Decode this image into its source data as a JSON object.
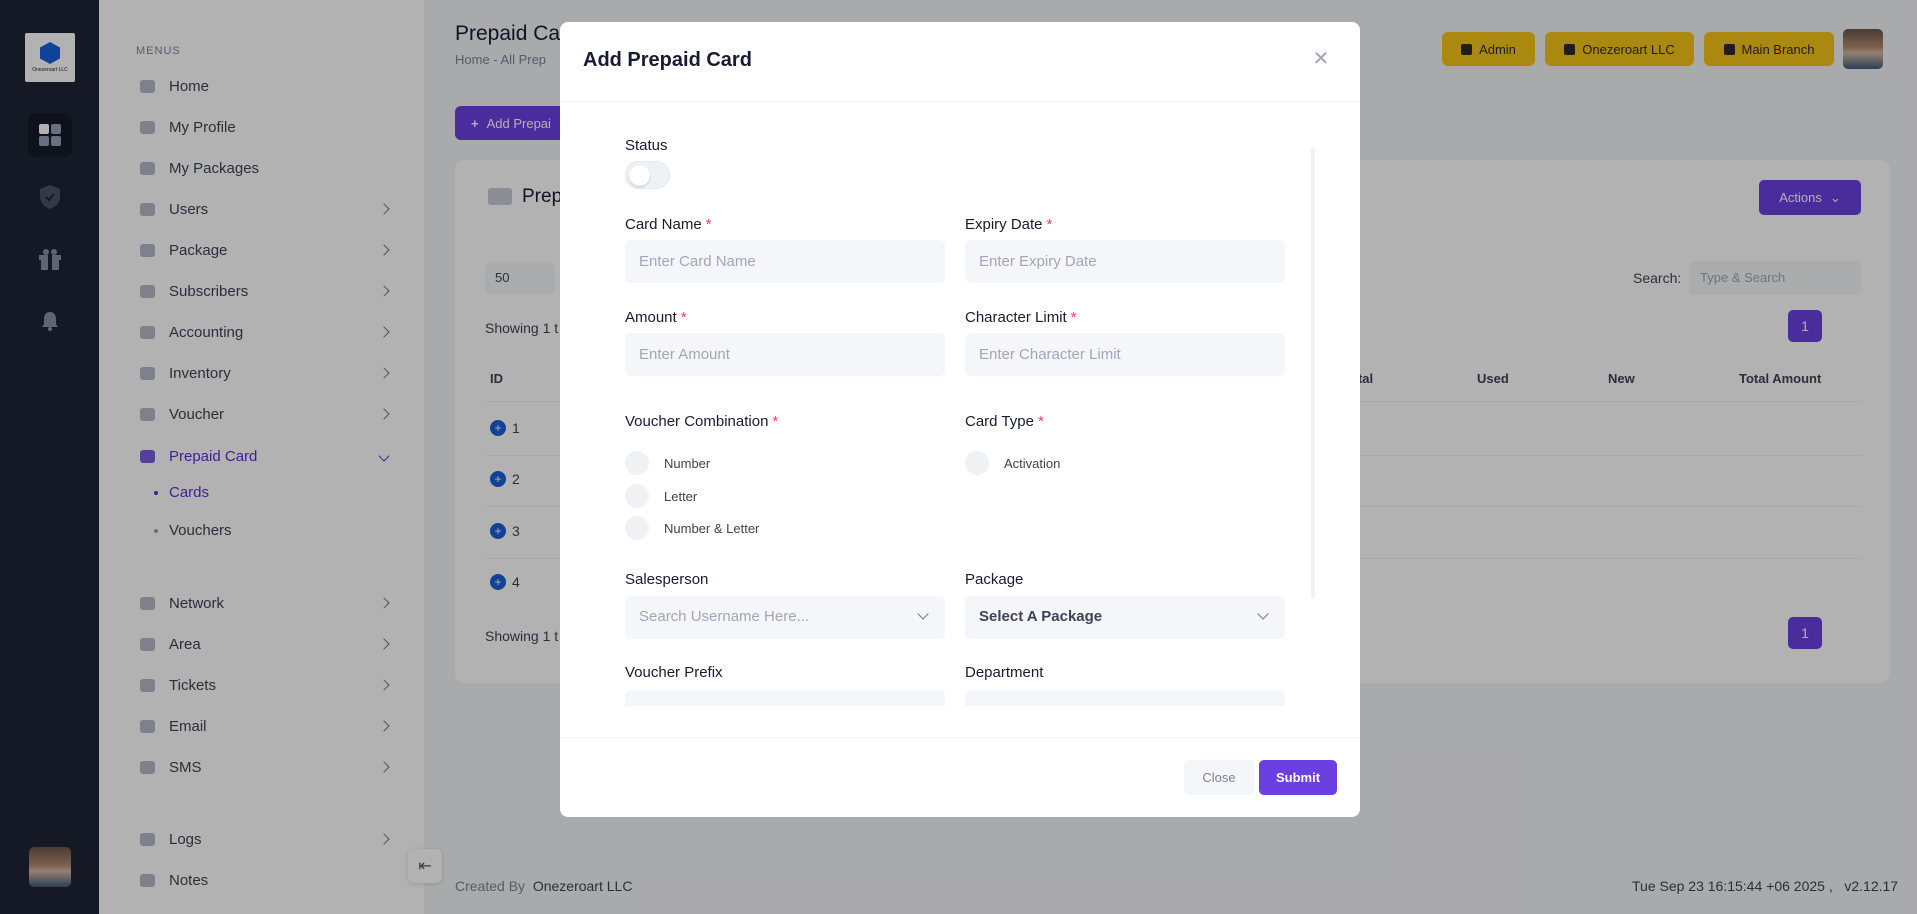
{
  "rail": {
    "logo_text": "Onezeroart LLC"
  },
  "sidebar": {
    "menus_label": "MENUS",
    "items": [
      {
        "label": "Home"
      },
      {
        "label": "My Profile"
      },
      {
        "label": "My Packages"
      },
      {
        "label": "Users"
      },
      {
        "label": "Package"
      },
      {
        "label": "Subscribers"
      },
      {
        "label": "Accounting"
      },
      {
        "label": "Inventory"
      },
      {
        "label": "Voucher"
      },
      {
        "label": "Prepaid Card"
      },
      {
        "label": "Network"
      },
      {
        "label": "Area"
      },
      {
        "label": "Tickets"
      },
      {
        "label": "Email"
      },
      {
        "label": "SMS"
      },
      {
        "label": "Logs"
      },
      {
        "label": "Notes"
      }
    ],
    "subitems": [
      {
        "label": "Cards"
      },
      {
        "label": "Vouchers"
      }
    ]
  },
  "header": {
    "title": "Prepaid Ca",
    "breadcrumb": "Home  -  All Prep",
    "admin_label": "Admin",
    "company_label": "Onezeroart LLC",
    "branch_label": "Main Branch"
  },
  "main": {
    "add_button": "Add Prepai",
    "card_title": "Prep",
    "actions_label": "Actions",
    "page_size": "50",
    "showing_top": "Showing 1 t",
    "showing_bottom": "Showing 1 t",
    "search_label": "Search:",
    "search_placeholder": "Type & Search",
    "page_number": "1",
    "columns": {
      "id": "ID",
      "total": "otal",
      "used": "Used",
      "new": "New",
      "total_amount": "Total Amount"
    },
    "rows": [
      "1",
      "2",
      "3",
      "4"
    ]
  },
  "footer": {
    "created_by": "Created By",
    "company": "Onezeroart LLC",
    "timestamp": "Tue Sep 23 16:15:44 +06 2025 ,",
    "version": "v2.12.17"
  },
  "modal": {
    "title": "Add Prepaid Card",
    "status_label": "Status",
    "card_name_label": "Card Name",
    "card_name_placeholder": "Enter Card Name",
    "expiry_label": "Expiry Date",
    "expiry_placeholder": "Enter Expiry Date",
    "amount_label": "Amount",
    "amount_placeholder": "Enter Amount",
    "char_limit_label": "Character Limit",
    "char_limit_placeholder": "Enter Character Limit",
    "voucher_combo_label": "Voucher Combination",
    "combo_options": [
      "Number",
      "Letter",
      "Number & Letter"
    ],
    "card_type_label": "Card Type",
    "card_type_options": [
      "Activation"
    ],
    "salesperson_label": "Salesperson",
    "salesperson_placeholder": "Search Username Here...",
    "package_label": "Package",
    "package_placeholder": "Select A Package",
    "voucher_prefix_label": "Voucher Prefix",
    "department_label": "Department",
    "required_mark": "*",
    "close_label": "Close",
    "submit_label": "Submit"
  },
  "colors": {
    "accent": "#6b3fe0",
    "rail": "#1e2535",
    "badge": "#f5c518",
    "required": "#f1416c"
  }
}
